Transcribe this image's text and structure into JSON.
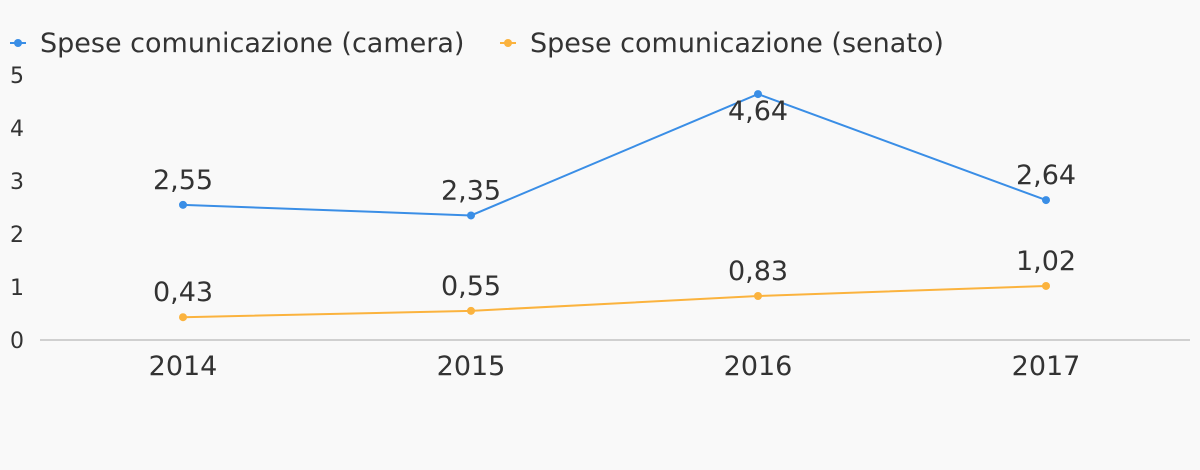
{
  "chart_data": {
    "type": "line",
    "title": "",
    "xlabel": "",
    "ylabel": "",
    "categories": [
      "2014",
      "2015",
      "2016",
      "2017"
    ],
    "ylim": [
      0,
      5
    ],
    "yticks": [
      "0",
      "1",
      "2",
      "3",
      "4",
      "5"
    ],
    "grid": false,
    "legend_position": "top-left",
    "series": [
      {
        "name": "Spese comunicazione (camera)",
        "color": "#3a8ee6",
        "values": [
          2.55,
          2.35,
          4.64,
          2.64
        ],
        "labels": [
          "2,55",
          "2,35",
          "4,64",
          "2,64"
        ]
      },
      {
        "name": "Spese comunicazione (senato)",
        "color": "#fbb33e",
        "values": [
          0.43,
          0.55,
          0.83,
          1.02
        ],
        "labels": [
          "0,43",
          "0,55",
          "0,83",
          "1,02"
        ]
      }
    ]
  }
}
